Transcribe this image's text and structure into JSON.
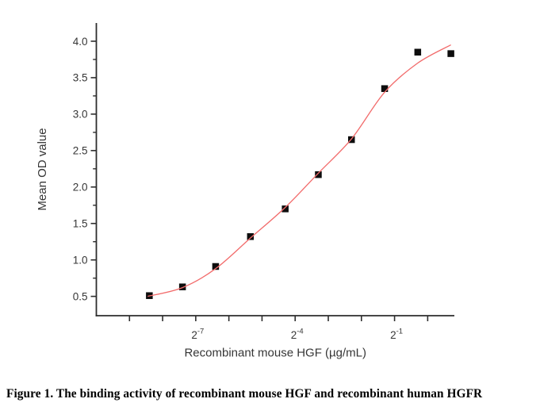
{
  "figure": {
    "caption": "Figure 1. The binding activity of recombinant mouse HGF and recombinant human HGFR"
  },
  "chart_data": {
    "type": "scatter",
    "title": "",
    "xlabel": "Recombinant mouse HGF (µg/mL)",
    "ylabel": "Mean OD value",
    "x_scale": "log2",
    "xlim_log2": [
      -10.0,
      0.805
    ],
    "ylim": [
      0.235,
      4.25
    ],
    "grid": false,
    "legend": "none",
    "x_ticks_log2": [
      -9,
      -8,
      -7,
      -6,
      -5,
      -4,
      -3,
      -2,
      -1,
      0
    ],
    "x_labeled_ticks": [
      {
        "log2": -7,
        "base": "2",
        "exp": "-7"
      },
      {
        "log2": -4,
        "base": "2",
        "exp": "-4"
      },
      {
        "log2": -1,
        "base": "2",
        "exp": "-1"
      }
    ],
    "y_major_ticks": [
      0.5,
      1.0,
      1.5,
      2.0,
      2.5,
      3.0,
      3.5,
      4.0
    ],
    "y_minor_ticks": [
      0.75,
      1.25,
      1.75,
      2.25,
      2.75,
      3.25,
      3.75
    ],
    "series": [
      {
        "name": "mean-od-data-points",
        "style": "scatter",
        "marker": "square",
        "marker_color": "#0d0d0d",
        "marker_size": 8.5,
        "points": [
          [
            -8.4,
            0.51
          ],
          [
            -7.4,
            0.63
          ],
          [
            -6.4,
            0.91
          ],
          [
            -5.35,
            1.32
          ],
          [
            -4.3,
            1.7
          ],
          [
            -3.3,
            2.17
          ],
          [
            -2.3,
            2.65
          ],
          [
            -1.3,
            3.35
          ],
          [
            -0.3,
            3.85
          ],
          [
            0.7,
            3.83
          ]
        ]
      },
      {
        "name": "logistic-fit-curve",
        "style": "line",
        "line_color": "#f26b6b",
        "line_width": 1.3,
        "points": [
          [
            -8.45,
            0.5
          ],
          [
            -7.4,
            0.62
          ],
          [
            -6.4,
            0.88
          ],
          [
            -5.35,
            1.3
          ],
          [
            -4.3,
            1.72
          ],
          [
            -3.3,
            2.19
          ],
          [
            -2.3,
            2.66
          ],
          [
            -1.3,
            3.3
          ],
          [
            -0.3,
            3.7
          ],
          [
            0.7,
            3.95
          ]
        ]
      }
    ],
    "colors": {
      "axis": "#2d2d2d",
      "tick_text": "#363636",
      "background": "#ffffff"
    }
  }
}
